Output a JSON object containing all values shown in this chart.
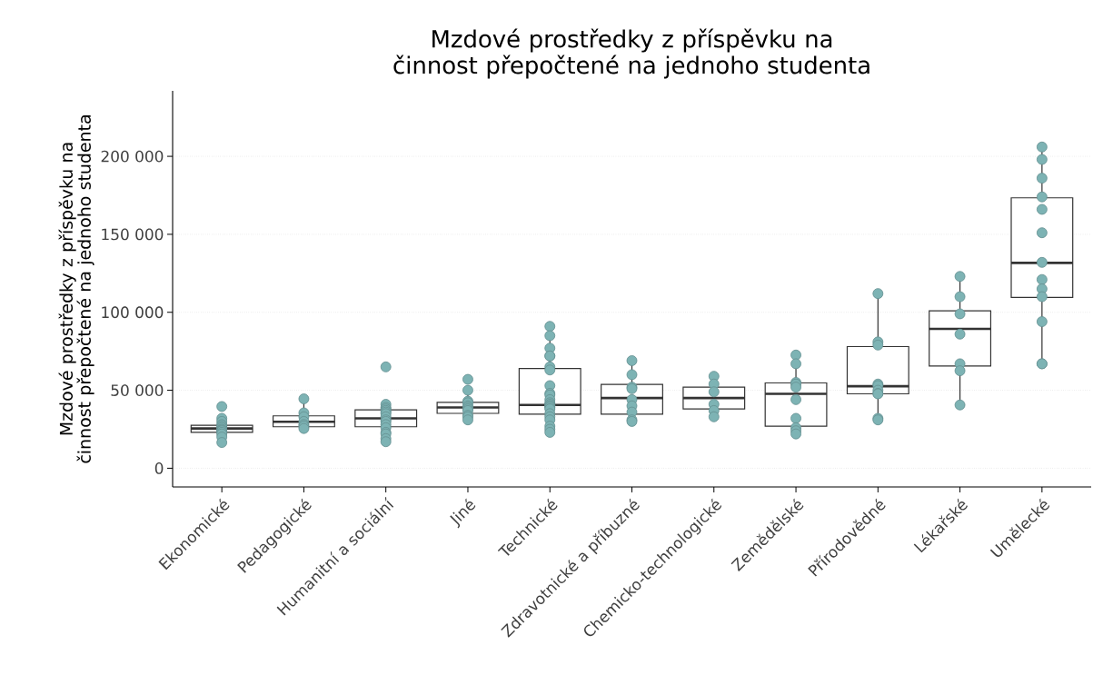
{
  "chart_data": {
    "type": "box",
    "title": "Mzdové prostředky z příspěvku na činnost přepočtené na jednoho studenta",
    "ylabel": "Mzdové prostředky z příspěvku na činnost přepočtené na jednoho studenta",
    "categories": [
      "Ekonomické",
      "Pedagogické",
      "Humanitní a sociální",
      "Jiné",
      "Technické",
      "Zdravotnické a příbuzné",
      "Chemicko-technologické",
      "Zemědělské",
      "Přírodovědné",
      "Lékařské",
      "Umělecké"
    ],
    "color": "#333333",
    "boxes": [
      {
        "low": 16500,
        "q1": 23000,
        "median": 25500,
        "q3": 27500,
        "high": 32000
      },
      {
        "low": 25000,
        "q1": 26600,
        "median": 29800,
        "q3": 33600,
        "high": 44500
      },
      {
        "low": 16800,
        "q1": 26600,
        "median": 32000,
        "q3": 37400,
        "high": 40000
      },
      {
        "low": 31000,
        "q1": 35200,
        "median": 39000,
        "q3": 42300,
        "high": 50000
      },
      {
        "low": 22800,
        "q1": 34700,
        "median": 40600,
        "q3": 64000,
        "high": 91000
      },
      {
        "low": 29300,
        "q1": 34700,
        "median": 45000,
        "q3": 53700,
        "high": 68800
      },
      {
        "low": 33000,
        "q1": 38000,
        "median": 45000,
        "q3": 52000,
        "high": 58500
      },
      {
        "low": 22200,
        "q1": 27000,
        "median": 47700,
        "q3": 54700,
        "high": 72600
      },
      {
        "low": 31400,
        "q1": 47700,
        "median": 52600,
        "q3": 78000,
        "high": 112000
      },
      {
        "low": 40600,
        "q1": 65600,
        "median": 89400,
        "q3": 101000,
        "high": 122500
      },
      {
        "low": 66700,
        "q1": 109500,
        "median": 131700,
        "q3": 173400,
        "high": 206000
      }
    ],
    "series": [
      {
        "type": "scatter",
        "color": "#7db3b4",
        "x": [
          "Ekonomické",
          "Ekonomické",
          "Ekonomické",
          "Ekonomické",
          "Ekonomické",
          "Ekonomické",
          "Ekonomické",
          "Ekonomické",
          "Ekonomické",
          "Ekonomické",
          "Ekonomické",
          "Ekonomické",
          "Ekonomické",
          "Pedagogické",
          "Pedagogické",
          "Pedagogické",
          "Pedagogické",
          "Pedagogické",
          "Pedagogické",
          "Pedagogické",
          "Humanitní a sociální",
          "Humanitní a sociální",
          "Humanitní a sociální",
          "Humanitní a sociální",
          "Humanitní a sociální",
          "Humanitní a sociální",
          "Humanitní a sociální",
          "Humanitní a sociální",
          "Humanitní a sociální",
          "Humanitní a sociální",
          "Humanitní a sociální",
          "Humanitní a sociální",
          "Humanitní a sociální",
          "Humanitní a sociální",
          "Humanitní a sociální",
          "Humanitní a sociální",
          "Jiné",
          "Jiné",
          "Jiné",
          "Jiné",
          "Jiné",
          "Jiné",
          "Jiné",
          "Jiné",
          "Jiné",
          "Jiné",
          "Jiné",
          "Technické",
          "Technické",
          "Technické",
          "Technické",
          "Technické",
          "Technické",
          "Technické",
          "Technické",
          "Technické",
          "Technické",
          "Technické",
          "Technické",
          "Technické",
          "Technické",
          "Technické",
          "Technické",
          "Technické",
          "Technické",
          "Technické",
          "Technické",
          "Technické",
          "Technické",
          "Technické",
          "Zdravotnické a příbuzné",
          "Zdravotnické a příbuzné",
          "Zdravotnické a příbuzné",
          "Zdravotnické a příbuzné",
          "Zdravotnické a příbuzné",
          "Zdravotnické a příbuzné",
          "Zdravotnické a příbuzné",
          "Zdravotnické a příbuzné",
          "Zdravotnické a příbuzné",
          "Chemicko-technologické",
          "Chemicko-technologické",
          "Chemicko-technologické",
          "Chemicko-technologické",
          "Chemicko-technologické",
          "Chemicko-technologické",
          "Zemědělské",
          "Zemědělské",
          "Zemědělské",
          "Zemědělské",
          "Zemědělské",
          "Zemědělské",
          "Zemědělské",
          "Zemědělské",
          "Zemědělské",
          "Zemědělské",
          "Přírodovědné",
          "Přírodovědné",
          "Přírodovědné",
          "Přírodovědné",
          "Přírodovědné",
          "Přírodovědné",
          "Přírodovědné",
          "Přírodovědné",
          "Přírodovědné",
          "Přírodovědné",
          "Lékařské",
          "Lékařské",
          "Lékařské",
          "Lékařské",
          "Lékařské",
          "Lékařské",
          "Lékařské",
          "Umělecké",
          "Umělecké",
          "Umělecké",
          "Umělecké",
          "Umělecké",
          "Umělecké",
          "Umělecké",
          "Umělecké",
          "Umělecké",
          "Umělecké",
          "Umělecké",
          "Umělecké",
          "Umělecké"
        ],
        "values": [
          39600,
          32000,
          30000,
          28000,
          27000,
          26000,
          25000,
          24500,
          24000,
          23000,
          22000,
          20000,
          16500,
          44500,
          35500,
          33000,
          30000,
          28000,
          27000,
          25500,
          65000,
          41000,
          39000,
          38000,
          37000,
          36000,
          35000,
          33000,
          31000,
          30000,
          28000,
          26000,
          23000,
          22000,
          19000,
          17000,
          57000,
          50000,
          43000,
          42000,
          40000,
          39000,
          38000,
          37000,
          34000,
          33000,
          31000,
          91000,
          85000,
          77000,
          72000,
          72000,
          65000,
          63000,
          53000,
          48000,
          47000,
          44000,
          42000,
          41000,
          40000,
          40000,
          39000,
          38000,
          35000,
          33000,
          31000,
          27000,
          25000,
          23000,
          69000,
          60000,
          52000,
          51000,
          44000,
          40000,
          36000,
          31000,
          30000,
          59000,
          54000,
          49000,
          41000,
          37000,
          33000,
          72600,
          67000,
          55000,
          54000,
          52000,
          44000,
          32000,
          26000,
          24000,
          22000,
          112000,
          81000,
          79000,
          54000,
          53000,
          50000,
          48000,
          47700,
          32000,
          31000,
          123000,
          110000,
          99000,
          86000,
          67000,
          62500,
          40600,
          206000,
          198000,
          186000,
          174000,
          166000,
          151000,
          132000,
          121000,
          115000,
          110000,
          94000,
          67000,
          67000
        ]
      }
    ],
    "ylim": [
      -12000,
      242000
    ],
    "yticks": [
      0,
      {
        "value": 50000,
        "label": "50 000"
      },
      {
        "value": 100000,
        "label": "100 000"
      },
      {
        "value": 150000,
        "label": "150 000"
      },
      {
        "value": 200000,
        "label": "200 000"
      }
    ],
    "grid": "y",
    "marker": "circle"
  }
}
